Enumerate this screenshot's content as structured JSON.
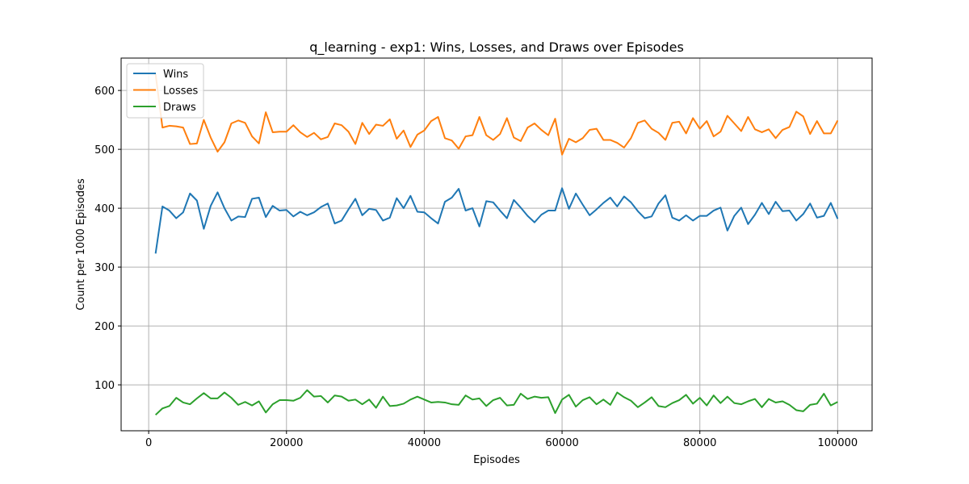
{
  "chart_data": {
    "type": "line",
    "title": "q_learning - exp1: Wins, Losses, and Draws over Episodes",
    "xlabel": "Episodes",
    "ylabel": "Count per 1000 Episodes",
    "xlim": [
      -4000,
      105000
    ],
    "ylim": [
      22,
      655
    ],
    "xticks": [
      0,
      20000,
      40000,
      60000,
      80000,
      100000
    ],
    "yticks": [
      100,
      200,
      300,
      400,
      500,
      600
    ],
    "grid": true,
    "legend_position": "top-left",
    "x": [
      1000,
      2000,
      3000,
      4000,
      5000,
      6000,
      7000,
      8000,
      9000,
      10000,
      11000,
      12000,
      13000,
      14000,
      15000,
      16000,
      17000,
      18000,
      19000,
      20000,
      21000,
      22000,
      23000,
      24000,
      25000,
      26000,
      27000,
      28000,
      29000,
      30000,
      31000,
      32000,
      33000,
      34000,
      35000,
      36000,
      37000,
      38000,
      39000,
      40000,
      41000,
      42000,
      43000,
      44000,
      45000,
      46000,
      47000,
      48000,
      49000,
      50000,
      51000,
      52000,
      53000,
      54000,
      55000,
      56000,
      57000,
      58000,
      59000,
      60000,
      61000,
      62000,
      63000,
      64000,
      65000,
      66000,
      67000,
      68000,
      69000,
      70000,
      71000,
      72000,
      73000,
      74000,
      75000,
      76000,
      77000,
      78000,
      79000,
      80000,
      81000,
      82000,
      83000,
      84000,
      85000,
      86000,
      87000,
      88000,
      89000,
      90000,
      91000,
      92000,
      93000,
      94000,
      95000,
      96000,
      97000,
      98000,
      99000,
      100000
    ],
    "series": [
      {
        "name": "Wins",
        "color": "#1f77b4",
        "values": [
          323,
          403,
          396,
          383,
          393,
          425,
          413,
          365,
          404,
          427,
          400,
          379,
          386,
          385,
          416,
          418,
          385,
          404,
          396,
          397,
          386,
          394,
          388,
          393,
          402,
          408,
          374,
          379,
          398,
          416,
          388,
          399,
          397,
          379,
          384,
          417,
          400,
          421,
          394,
          393,
          383,
          374,
          411,
          418,
          433,
          396,
          400,
          369,
          412,
          410,
          396,
          383,
          414,
          401,
          387,
          376,
          389,
          396,
          396,
          434,
          399,
          425,
          406,
          388,
          398,
          409,
          418,
          403,
          420,
          410,
          395,
          383,
          386,
          408,
          422,
          384,
          379,
          388,
          379,
          387,
          387,
          396,
          401,
          362,
          387,
          401,
          373,
          389,
          409,
          390,
          411,
          395,
          396,
          379,
          390,
          408,
          384,
          387,
          409,
          382
        ]
      },
      {
        "name": "Losses",
        "color": "#ff7f0e",
        "values": [
          628,
          537,
          540,
          539,
          537,
          509,
          510,
          550,
          520,
          496,
          512,
          544,
          549,
          545,
          522,
          510,
          563,
          529,
          530,
          530,
          541,
          529,
          521,
          528,
          517,
          521,
          544,
          541,
          530,
          509,
          545,
          526,
          542,
          540,
          551,
          518,
          532,
          504,
          525,
          532,
          548,
          555,
          519,
          515,
          501,
          522,
          524,
          555,
          524,
          516,
          526,
          553,
          520,
          514,
          537,
          544,
          533,
          524,
          552,
          491,
          518,
          512,
          519,
          533,
          535,
          516,
          516,
          511,
          503,
          519,
          545,
          549,
          535,
          528,
          516,
          545,
          547,
          527,
          553,
          535,
          548,
          522,
          530,
          557,
          544,
          531,
          555,
          534,
          529,
          534,
          519,
          533,
          538,
          564,
          556,
          526,
          548,
          527,
          527,
          549
        ]
      },
      {
        "name": "Draws",
        "color": "#2ca02c",
        "values": [
          49,
          60,
          64,
          78,
          70,
          67,
          77,
          86,
          77,
          77,
          87,
          78,
          66,
          71,
          65,
          72,
          53,
          67,
          74,
          74,
          73,
          78,
          91,
          80,
          81,
          70,
          82,
          80,
          73,
          75,
          67,
          75,
          61,
          80,
          64,
          65,
          68,
          75,
          80,
          75,
          70,
          71,
          70,
          67,
          66,
          82,
          75,
          77,
          64,
          74,
          78,
          65,
          66,
          85,
          76,
          80,
          78,
          79,
          52,
          75,
          83,
          63,
          74,
          79,
          67,
          75,
          66,
          87,
          79,
          73,
          62,
          70,
          79,
          64,
          62,
          69,
          74,
          83,
          68,
          78,
          65,
          82,
          69,
          80,
          69,
          67,
          72,
          76,
          62,
          76,
          70,
          72,
          66,
          57,
          55,
          66,
          68,
          85,
          65,
          71
        ]
      }
    ]
  }
}
